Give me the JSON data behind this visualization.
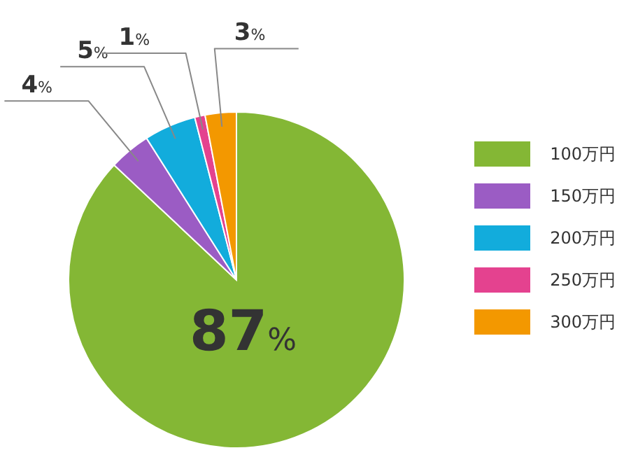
{
  "chart_data": {
    "type": "pie",
    "categories": [
      "100万円",
      "150万円",
      "200万円",
      "250万円",
      "300万円"
    ],
    "values": [
      87,
      4,
      5,
      1,
      3
    ],
    "colors": [
      "#84b735",
      "#9b5cc4",
      "#12acdc",
      "#e4428f",
      "#f39800"
    ],
    "value_labels": [
      "87%",
      "4%",
      "5%",
      "1%",
      "3%"
    ],
    "legend": "right"
  }
}
